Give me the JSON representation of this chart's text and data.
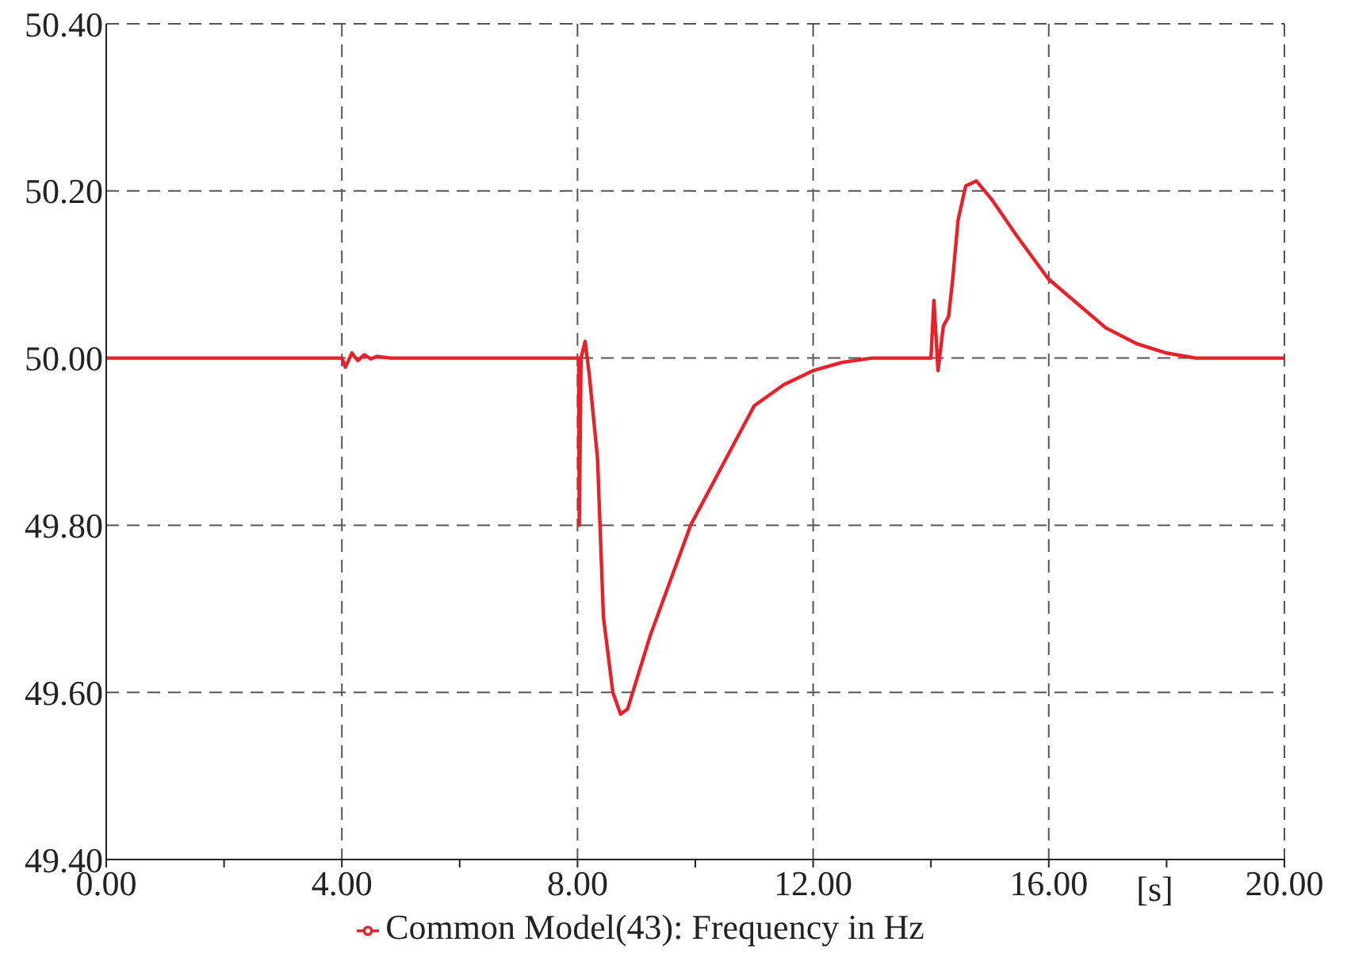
{
  "chart_data": {
    "type": "line",
    "xlabel": "[s]",
    "x": [
      0,
      4.0,
      4.06,
      4.17,
      4.27,
      4.38,
      4.49,
      4.59,
      4.83,
      8.0,
      8.02,
      8.03,
      8.06,
      8.13,
      8.2,
      8.34,
      8.44,
      8.6,
      8.73,
      8.85,
      9.23,
      9.92,
      10.63,
      11.0,
      11.5,
      12.0,
      12.5,
      13.0,
      14.0,
      14.05,
      14.12,
      14.21,
      14.3,
      14.37,
      14.46,
      14.59,
      14.77,
      15.03,
      15.46,
      15.99,
      16.97,
      17.5,
      18.0,
      18.5,
      20.0
    ],
    "series": [
      {
        "name": "Common Model(43): Frequency in Hz",
        "color": "#e8202a",
        "values": [
          50,
          50,
          49.989,
          50.006,
          49.997,
          50.004,
          49.999,
          50.002,
          50,
          50,
          50,
          49.8,
          50,
          50.02,
          49.98,
          49.88,
          49.69,
          49.6,
          49.574,
          49.58,
          49.667,
          49.8,
          49.894,
          49.943,
          49.968,
          49.985,
          49.995,
          50,
          50,
          50.069,
          49.985,
          50.038,
          50.05,
          50.095,
          50.165,
          50.206,
          50.212,
          50.19,
          50.146,
          50.095,
          50.036,
          50.017,
          50.006,
          50,
          50
        ]
      }
    ],
    "xlim": [
      0,
      20
    ],
    "xticks": [
      {
        "value": 0,
        "label": "0.00"
      },
      {
        "value": 2,
        "label": null
      },
      {
        "value": 4,
        "label": "4.00"
      },
      {
        "value": 6,
        "label": null
      },
      {
        "value": 8,
        "label": "8.00"
      },
      {
        "value": 10,
        "label": null
      },
      {
        "value": 12,
        "label": "12.00"
      },
      {
        "value": 14,
        "label": null
      },
      {
        "value": 16,
        "label": "16.00"
      },
      {
        "value": 18,
        "label": null
      },
      {
        "value": 20,
        "label": "20.00"
      }
    ],
    "ylim": [
      49.4,
      50.4
    ],
    "yticks": [
      {
        "value": 49.4,
        "label": "49.40"
      },
      {
        "value": 49.6,
        "label": "49.60"
      },
      {
        "value": 49.8,
        "label": "49.80"
      },
      {
        "value": 50,
        "label": "50.00"
      },
      {
        "value": 50.2,
        "label": "50.20"
      },
      {
        "value": 50.4,
        "label": "50.40"
      }
    ],
    "grid": true,
    "legend": "bottom",
    "marker": "none",
    "line_style": "solid"
  }
}
